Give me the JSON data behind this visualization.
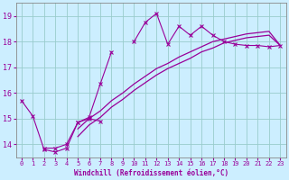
{
  "xlabel": "Windchill (Refroidissement éolien,°C)",
  "bg_color": "#cceeff",
  "line_color": "#990099",
  "grid_color": "#99cccc",
  "x_data": [
    0,
    1,
    2,
    3,
    4,
    5,
    6,
    7,
    8,
    9,
    10,
    11,
    12,
    13,
    14,
    15,
    16,
    17,
    18,
    19,
    20,
    21,
    22,
    23
  ],
  "line1_y": [
    15.7,
    15.1,
    13.8,
    13.7,
    13.85,
    14.85,
    15.05,
    16.35,
    17.6,
    null,
    18.0,
    18.75,
    19.1,
    17.9,
    18.6,
    18.25,
    18.6,
    18.25,
    18.0,
    17.9,
    17.85,
    17.85,
    17.8,
    17.85
  ],
  "line2_y": [
    null,
    null,
    13.85,
    13.85,
    14.0,
    14.85,
    15.0,
    14.9,
    null,
    null,
    null,
    null,
    null,
    null,
    null,
    null,
    null,
    null,
    null,
    null,
    null,
    null,
    null,
    null
  ],
  "line3_y": [
    null,
    null,
    null,
    null,
    null,
    14.6,
    15.0,
    15.3,
    15.7,
    16.0,
    16.35,
    16.65,
    16.95,
    17.15,
    17.4,
    17.6,
    17.8,
    18.0,
    18.1,
    18.2,
    18.3,
    18.35,
    18.4,
    17.85
  ],
  "line4_y": [
    null,
    null,
    null,
    null,
    null,
    14.3,
    14.75,
    15.05,
    15.45,
    15.75,
    16.1,
    16.4,
    16.7,
    16.95,
    17.15,
    17.35,
    17.6,
    17.75,
    17.95,
    18.05,
    18.15,
    18.2,
    18.25,
    17.85
  ],
  "ylim": [
    13.5,
    19.5
  ],
  "xlim": [
    -0.5,
    23.5
  ],
  "yticks": [
    14,
    15,
    16,
    17,
    18,
    19
  ],
  "xticks": [
    0,
    1,
    2,
    3,
    4,
    5,
    6,
    7,
    8,
    9,
    10,
    11,
    12,
    13,
    14,
    15,
    16,
    17,
    18,
    19,
    20,
    21,
    22,
    23
  ]
}
